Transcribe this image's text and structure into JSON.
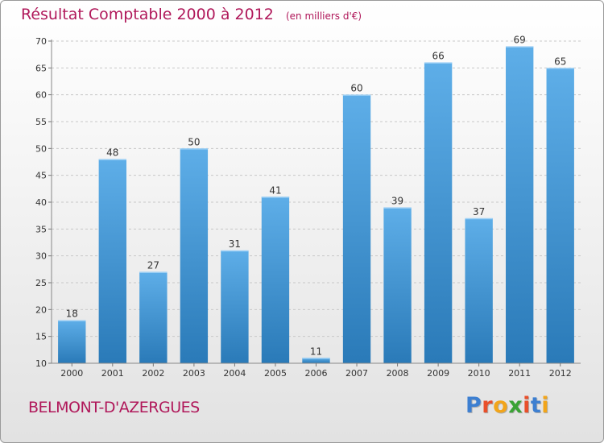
{
  "title": "Résultat Comptable 2000 à 2012",
  "subtitle": "(en milliers d'€)",
  "location": "BELMONT-D'AZERGUES",
  "brand": {
    "text": "Proxiti",
    "letters": [
      {
        "char": "P",
        "color": "#3d7fd1"
      },
      {
        "char": "r",
        "color": "#e94f2a"
      },
      {
        "char": "o",
        "color": "#f2a51a"
      },
      {
        "char": "x",
        "color": "#3aa335"
      },
      {
        "char": "i",
        "color": "#e94f2a"
      },
      {
        "char": "t",
        "color": "#3d7fd1"
      },
      {
        "char": "i",
        "color": "#f2a51a"
      }
    ]
  },
  "colors": {
    "bar_light": "#5eaee8",
    "bar_dark": "#2a7ab8",
    "title": "#b0185a"
  },
  "chart_data": {
    "type": "bar",
    "categories": [
      "2000",
      "2001",
      "2002",
      "2003",
      "2004",
      "2005",
      "2006",
      "2007",
      "2008",
      "2009",
      "2010",
      "2011",
      "2012"
    ],
    "values": [
      18,
      48,
      27,
      50,
      31,
      41,
      11,
      60,
      39,
      66,
      37,
      69,
      65
    ],
    "ylim": [
      10,
      70
    ],
    "yticks": [
      10,
      15,
      20,
      25,
      30,
      35,
      40,
      45,
      50,
      55,
      60,
      65,
      70
    ],
    "grid": "horizontal dashed",
    "data_labels": true
  }
}
